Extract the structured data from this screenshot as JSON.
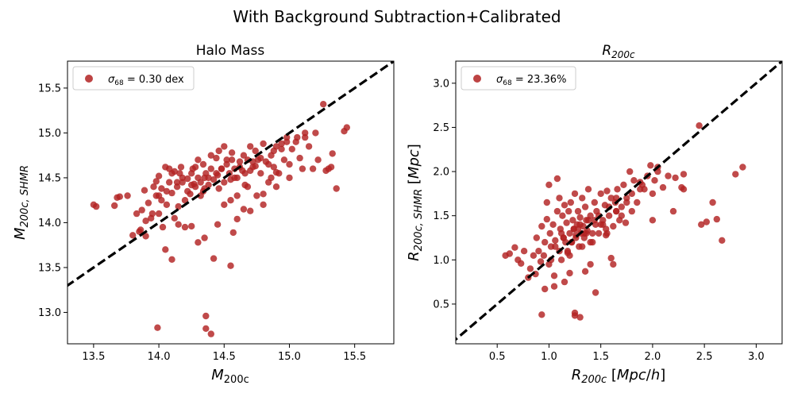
{
  "figure": {
    "title": "With Background Subtraction+Calibrated"
  },
  "chart_data": [
    {
      "type": "scatter",
      "title": "Halo Mass",
      "xlabel": "M_{200c}",
      "ylabel": "M_{200c,SHMR}",
      "xlim": [
        13.3,
        15.8
      ],
      "ylim": [
        12.65,
        15.8
      ],
      "xticks": [
        13.5,
        14.0,
        14.5,
        15.0,
        15.5
      ],
      "xtick_labels": [
        "13.5",
        "14.0",
        "14.5",
        "15.0",
        "15.5"
      ],
      "yticks": [
        13.0,
        13.5,
        14.0,
        14.5,
        15.0,
        15.5
      ],
      "ytick_labels": [
        "13.0",
        "13.5",
        "14.0",
        "14.5",
        "15.0",
        "15.5"
      ],
      "grid": false,
      "legend": {
        "position": "upper-left",
        "label": "σ68 = 0.30 dex",
        "label_parts": {
          "sigma": "σ",
          "sub": "68",
          "rest": " = 0.30 dex"
        }
      },
      "reference_line": {
        "style": "dashed",
        "color": "#000000",
        "equation": "y = x"
      },
      "marker_color": "#B22222",
      "x": [
        13.5,
        13.52,
        13.66,
        13.68,
        13.7,
        13.76,
        13.8,
        13.83,
        13.86,
        13.87,
        13.89,
        13.9,
        13.92,
        13.94,
        13.96,
        13.98,
        13.98,
        14.0,
        14.0,
        14.02,
        14.03,
        14.05,
        14.06,
        14.08,
        14.1,
        14.12,
        14.14,
        14.15,
        14.17,
        14.18,
        14.2,
        14.22,
        14.24,
        14.25,
        14.27,
        14.28,
        14.3,
        14.32,
        14.34,
        14.35,
        14.36,
        14.38,
        14.4,
        14.42,
        14.44,
        14.45,
        14.46,
        14.48,
        14.5,
        14.52,
        14.54,
        14.55,
        14.56,
        14.58,
        14.6,
        14.62,
        14.64,
        14.65,
        14.66,
        14.68,
        14.7,
        14.72,
        14.74,
        14.76,
        14.78,
        14.8,
        14.82,
        14.84,
        14.86,
        14.88,
        14.9,
        14.92,
        14.94,
        14.96,
        14.98,
        15.0,
        15.02,
        15.05,
        15.08,
        15.1,
        15.12,
        15.15,
        15.18,
        15.2,
        15.22,
        15.26,
        15.28,
        15.3,
        15.32,
        15.33,
        15.36,
        15.42,
        15.44,
        14.36,
        14.36,
        14.4,
        13.99,
        14.05,
        14.1,
        14.2,
        14.35,
        14.42,
        14.55,
        14.57,
        14.6,
        14.3,
        14.25,
        14.15,
        14.12,
        13.95,
        13.9,
        13.85,
        14.0,
        14.45,
        14.5,
        14.7,
        14.75,
        14.9,
        15.0,
        14.8,
        14.65,
        14.55,
        14.35,
        14.25,
        14.18,
        14.1,
        14.08,
        14.22,
        14.28,
        14.32,
        14.38,
        14.44,
        14.48,
        14.52,
        14.58,
        14.62,
        14.68,
        14.72,
        14.78,
        14.84,
        14.88,
        14.94,
        14.98,
        15.06,
        15.12,
        14.02,
        14.06,
        14.14,
        14.16,
        14.26,
        14.3,
        14.34,
        14.4,
        14.46,
        14.5,
        14.56,
        14.6,
        14.66,
        14.7,
        14.74,
        14.8,
        14.86,
        14.9
      ],
      "y": [
        14.2,
        14.18,
        14.19,
        14.28,
        14.29,
        14.3,
        13.86,
        14.1,
        13.92,
        14.14,
        14.36,
        13.85,
        14.22,
        14.05,
        14.4,
        14.3,
        14.46,
        14.3,
        14.52,
        14.38,
        13.95,
        14.62,
        14.2,
        14.45,
        14.33,
        14.57,
        14.4,
        14.18,
        14.62,
        14.45,
        14.25,
        14.49,
        14.32,
        14.55,
        14.43,
        14.62,
        14.5,
        14.3,
        14.65,
        14.5,
        14.55,
        14.42,
        14.6,
        14.48,
        14.72,
        14.53,
        14.38,
        14.6,
        14.45,
        14.7,
        14.55,
        14.48,
        14.78,
        14.6,
        14.5,
        14.68,
        14.58,
        14.75,
        14.55,
        14.4,
        14.85,
        14.62,
        14.8,
        14.7,
        14.55,
        14.88,
        14.68,
        14.45,
        14.75,
        14.62,
        14.85,
        14.55,
        14.88,
        14.7,
        14.95,
        14.65,
        14.82,
        14.9,
        14.72,
        14.6,
        14.95,
        14.85,
        14.6,
        15.0,
        14.7,
        15.32,
        14.58,
        14.6,
        14.62,
        14.77,
        14.38,
        15.02,
        15.06,
        12.96,
        12.82,
        12.76,
        12.83,
        13.7,
        13.59,
        13.95,
        13.83,
        13.6,
        13.52,
        13.89,
        14.04,
        13.78,
        13.96,
        13.98,
        14.05,
        14.1,
        14.02,
        13.9,
        14.1,
        13.98,
        14.2,
        14.13,
        14.3,
        14.4,
        14.5,
        14.32,
        14.15,
        14.25,
        14.38,
        14.42,
        14.5,
        14.55,
        14.6,
        14.35,
        14.4,
        14.45,
        14.5,
        14.55,
        14.6,
        14.65,
        14.5,
        14.62,
        14.7,
        14.68,
        14.72,
        14.65,
        14.8,
        14.82,
        14.9,
        14.95,
        15.0,
        14.25,
        14.35,
        14.45,
        14.55,
        14.6,
        14.7,
        14.35,
        14.75,
        14.8,
        14.85,
        14.7,
        14.3,
        14.42,
        14.58,
        14.63,
        14.2,
        14.5,
        14.56
      ]
    },
    {
      "type": "scatter",
      "title": "R_{200c}",
      "xlabel": "R_{200c} [Mpc/h]",
      "ylabel": "R_{200c,SHMR} [Mpc]",
      "xlim": [
        0.1,
        3.25
      ],
      "ylim": [
        0.05,
        3.25
      ],
      "xticks": [
        0.5,
        1.0,
        1.5,
        2.0,
        2.5,
        3.0
      ],
      "xtick_labels": [
        "0.5",
        "1.0",
        "1.5",
        "2.0",
        "2.5",
        "3.0"
      ],
      "yticks": [
        0.5,
        1.0,
        1.5,
        2.0,
        2.5,
        3.0
      ],
      "ytick_labels": [
        "0.5",
        "1.0",
        "1.5",
        "2.0",
        "2.5",
        "3.0"
      ],
      "grid": false,
      "legend": {
        "position": "upper-left",
        "label": "σ68 = 23.36%",
        "label_parts": {
          "sigma": "σ",
          "sub": "68",
          "rest": " = 23.36%"
        }
      },
      "reference_line": {
        "style": "dashed",
        "color": "#000000",
        "equation": "y = x"
      },
      "marker_color": "#B22222",
      "x": [
        0.58,
        0.62,
        0.67,
        0.7,
        0.73,
        0.76,
        0.8,
        0.82,
        0.85,
        0.87,
        0.88,
        0.9,
        0.92,
        0.93,
        0.95,
        0.96,
        0.98,
        1.0,
        1.01,
        1.02,
        1.04,
        1.05,
        1.06,
        1.08,
        1.1,
        1.11,
        1.12,
        1.13,
        1.14,
        1.15,
        1.16,
        1.17,
        1.18,
        1.19,
        1.2,
        1.21,
        1.22,
        1.23,
        1.24,
        1.25,
        1.26,
        1.27,
        1.28,
        1.29,
        1.3,
        1.31,
        1.32,
        1.33,
        1.34,
        1.35,
        1.36,
        1.37,
        1.38,
        1.4,
        1.42,
        1.44,
        1.45,
        1.46,
        1.48,
        1.5,
        1.52,
        1.54,
        1.55,
        1.56,
        1.58,
        1.6,
        1.62,
        1.64,
        1.65,
        1.66,
        1.68,
        1.7,
        1.72,
        1.74,
        1.75,
        1.78,
        1.8,
        1.82,
        1.85,
        1.88,
        1.9,
        1.95,
        1.98,
        2.0,
        2.02,
        2.05,
        2.1,
        2.15,
        2.2,
        2.22,
        2.28,
        2.3,
        2.45,
        2.47,
        2.52,
        2.58,
        2.62,
        2.67,
        2.8,
        2.87,
        0.93,
        0.96,
        1.25,
        1.25,
        1.3,
        1.45,
        1.15,
        1.05,
        1.2,
        1.35,
        1.4,
        1.6,
        1.62,
        1.1,
        0.98,
        1.0,
        1.08,
        1.12,
        1.18,
        1.22,
        1.28,
        1.32,
        1.38,
        1.42,
        1.48,
        1.52,
        1.58,
        1.65,
        1.7,
        1.75,
        1.8,
        1.88,
        1.92,
        2.0,
        2.05,
        2.3,
        1.26,
        1.3,
        1.36,
        1.44,
        1.55,
        1.65,
        1.02,
        1.06,
        1.14,
        1.2,
        1.24,
        1.34,
        1.4,
        1.5,
        1.56
      ],
      "y": [
        1.05,
        1.07,
        1.14,
        1.0,
        0.96,
        1.1,
        0.8,
        0.9,
        1.05,
        0.84,
        1.25,
        1.1,
        0.98,
        1.38,
        1.05,
        1.2,
        1.46,
        0.95,
        1.3,
        1.15,
        1.4,
        0.82,
        1.22,
        1.55,
        1.1,
        1.35,
        1.0,
        1.5,
        1.25,
        1.62,
        1.2,
        1.42,
        1.08,
        1.55,
        1.3,
        1.65,
        1.2,
        1.45,
        1.35,
        1.75,
        1.28,
        1.4,
        1.55,
        1.15,
        1.48,
        1.3,
        1.7,
        1.38,
        1.25,
        1.6,
        1.45,
        1.33,
        1.8,
        1.5,
        1.2,
        1.65,
        1.4,
        1.55,
        1.3,
        1.75,
        1.45,
        1.62,
        1.28,
        1.78,
        1.5,
        1.7,
        1.38,
        1.65,
        1.55,
        1.8,
        1.45,
        1.6,
        1.85,
        1.42,
        1.7,
        2.0,
        1.55,
        1.9,
        1.65,
        1.8,
        1.85,
        1.95,
        2.07,
        1.45,
        1.9,
        2.05,
        1.82,
        1.95,
        1.55,
        1.93,
        1.82,
        1.97,
        2.52,
        1.4,
        1.43,
        1.65,
        1.46,
        1.22,
        1.97,
        2.05,
        0.38,
        0.67,
        0.4,
        0.37,
        0.35,
        0.63,
        0.75,
        0.7,
        0.85,
        0.87,
        0.95,
        1.02,
        0.95,
        1.7,
        1.65,
        1.85,
        1.92,
        1.3,
        1.1,
        1.2,
        1.35,
        1.15,
        1.45,
        1.3,
        1.5,
        1.4,
        1.6,
        1.7,
        1.5,
        1.65,
        1.75,
        1.88,
        1.8,
        1.75,
        2.0,
        1.8,
        1.25,
        1.4,
        1.3,
        1.45,
        1.35,
        1.55,
        1.0,
        1.15,
        1.25,
        1.05,
        1.35,
        1.3,
        1.2,
        1.4,
        1.3
      ]
    }
  ]
}
